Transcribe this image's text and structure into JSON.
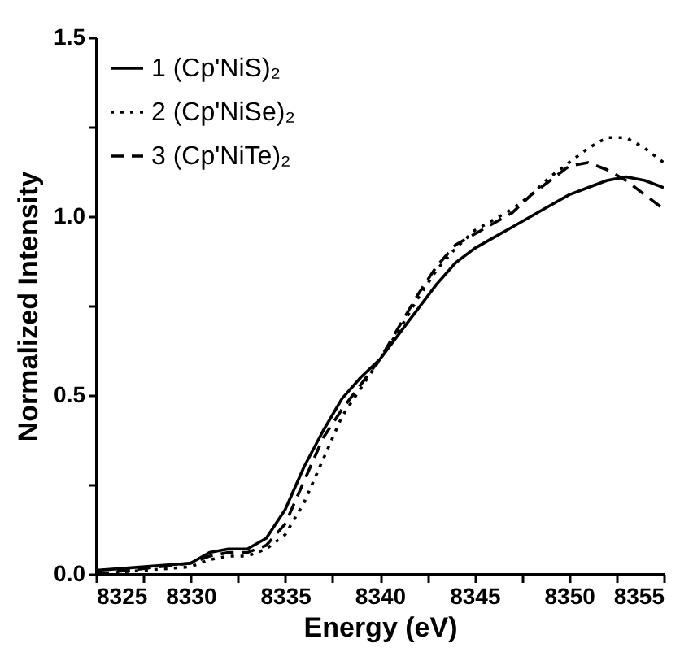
{
  "chart_data": {
    "type": "line",
    "xlabel": "Energy (eV)",
    "ylabel": "Normalized Intensity",
    "x": [
      8325,
      8330,
      8331,
      8332,
      8333,
      8334,
      8335,
      8336,
      8337,
      8338,
      8339,
      8340,
      8341,
      8342,
      8343,
      8344,
      8345,
      8346,
      8347,
      8348,
      8349,
      8350,
      8351,
      8352,
      8353,
      8354,
      8355
    ],
    "series": [
      {
        "name": "1 (Cp'NiS)₂",
        "color": "#000000",
        "line_style": "solid",
        "values": [
          0.01,
          0.03,
          0.06,
          0.07,
          0.07,
          0.1,
          0.18,
          0.3,
          0.4,
          0.49,
          0.55,
          0.6,
          0.67,
          0.74,
          0.81,
          0.87,
          0.91,
          0.94,
          0.97,
          1.0,
          1.03,
          1.06,
          1.08,
          1.1,
          1.11,
          1.1,
          1.08
        ]
      },
      {
        "name": "2 (Cp'NiSe)₂",
        "color": "#000000",
        "line_style": "dotted",
        "values": [
          0.0,
          0.02,
          0.04,
          0.05,
          0.05,
          0.07,
          0.11,
          0.2,
          0.32,
          0.44,
          0.52,
          0.6,
          0.68,
          0.77,
          0.85,
          0.91,
          0.96,
          0.99,
          1.02,
          1.06,
          1.11,
          1.15,
          1.19,
          1.22,
          1.22,
          1.19,
          1.15
        ]
      },
      {
        "name": "3 (Cp'NiTe)₂",
        "color": "#000000",
        "line_style": "dashed",
        "values": [
          0.0,
          0.03,
          0.05,
          0.06,
          0.06,
          0.08,
          0.14,
          0.26,
          0.38,
          0.46,
          0.53,
          0.6,
          0.69,
          0.78,
          0.86,
          0.92,
          0.95,
          0.98,
          1.01,
          1.06,
          1.1,
          1.14,
          1.15,
          1.13,
          1.1,
          1.06,
          1.02
        ]
      }
    ],
    "xlim": [
      8325,
      8355
    ],
    "xticks": [
      8325,
      {
        "value": 8327.5,
        "label": null
      },
      8330,
      {
        "value": 8332.5,
        "label": null
      },
      8335,
      {
        "value": 8337.5,
        "label": null
      },
      8340,
      {
        "value": 8342.5,
        "label": null
      },
      8345,
      {
        "value": 8347.5,
        "label": null
      },
      8350,
      {
        "value": 8352.5,
        "label": null
      },
      8355
    ],
    "ylim": [
      0,
      1.5
    ],
    "yticks": [
      {
        "value": 0,
        "label": "0.0"
      },
      {
        "value": 0.25,
        "label": null
      },
      {
        "value": 0.5,
        "label": "0.5"
      },
      {
        "value": 0.75,
        "label": null
      },
      {
        "value": 1,
        "label": "1.0"
      },
      {
        "value": 1.25,
        "label": null
      },
      {
        "value": 1.5,
        "label": "1.5"
      }
    ],
    "legend": "top left",
    "grid": false
  }
}
